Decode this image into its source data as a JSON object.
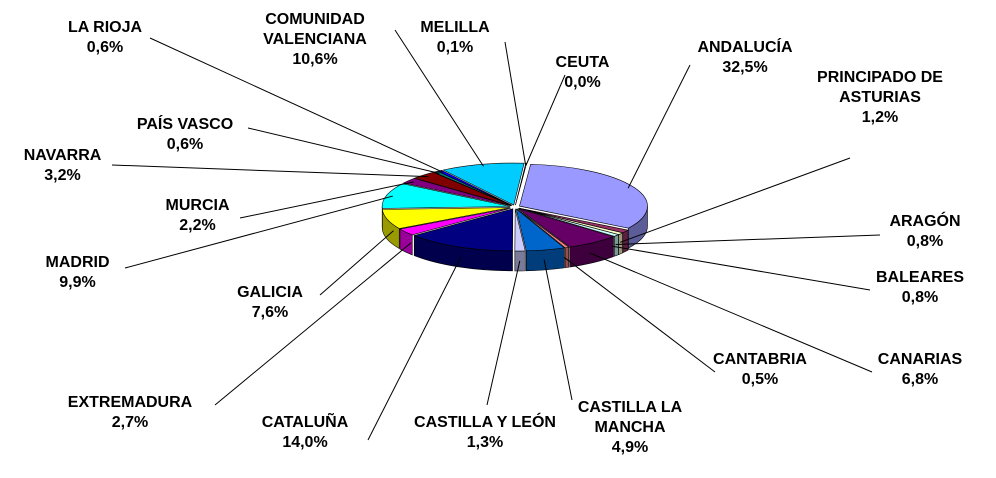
{
  "chart_data": {
    "type": "pie3d",
    "categories": [
      "ANDALUCÍA",
      "PRINCIPADO DE ASTURIAS",
      "ARAGÓN",
      "BALEARES",
      "CANARIAS",
      "CANTABRIA",
      "CASTILLA LA MANCHA",
      "CASTILLA Y LEÓN",
      "CATALUÑA",
      "EXTREMADURA",
      "GALICIA",
      "MADRID",
      "MURCIA",
      "NAVARRA",
      "PAÍS VASCO",
      "LA RIOJA",
      "COMUNIDAD VALENCIANA",
      "MELILLA",
      "CEUTA"
    ],
    "values": [
      32.5,
      1.2,
      0.8,
      0.8,
      6.8,
      0.5,
      4.9,
      1.3,
      14.0,
      2.7,
      7.6,
      9.9,
      2.2,
      3.2,
      0.6,
      0.6,
      10.6,
      0.1,
      0.0
    ],
    "value_labels": [
      "32,5%",
      "1,2%",
      "0,8%",
      "0,8%",
      "6,8%",
      "0,5%",
      "4,9%",
      "1,3%",
      "14,0%",
      "2,7%",
      "7,6%",
      "9,9%",
      "2,2%",
      "3,2%",
      "0,6%",
      "0,6%",
      "10,6%",
      "0,1%",
      "0,0%"
    ],
    "colors": [
      "#9999ff",
      "#993366",
      "#ffffcc",
      "#ccffff",
      "#660066",
      "#ff8080",
      "#0066cc",
      "#ccccff",
      "#000080",
      "#ff00ff",
      "#ffff00",
      "#00ffff",
      "#800080",
      "#800000",
      "#008080",
      "#0000ff",
      "#00ccff",
      "#ccffff",
      "#ccffcc"
    ]
  }
}
